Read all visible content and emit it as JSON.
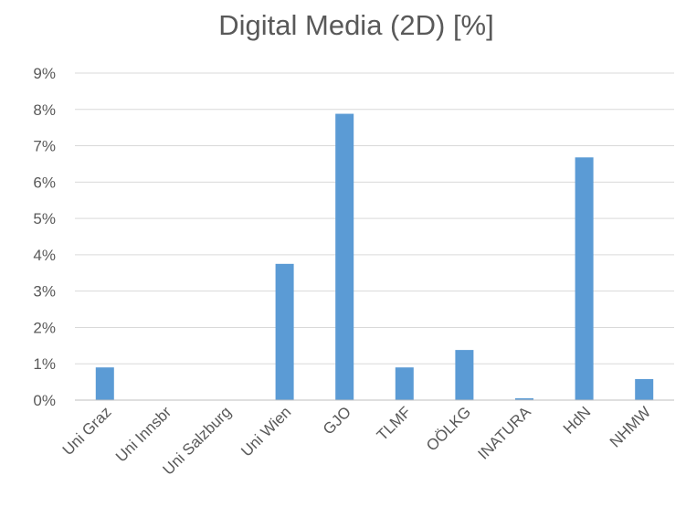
{
  "chart_data": {
    "type": "bar",
    "title": "Digital Media (2D) [%]",
    "xlabel": "",
    "ylabel": "",
    "categories": [
      "Uni Graz",
      "Uni Innsbr",
      "Uni Salzburg",
      "Uni Wien",
      "GJO",
      "TLMF",
      "OÖLKG",
      "INATURA",
      "HdN",
      "NHMW"
    ],
    "values": [
      0.9,
      0,
      0,
      3.75,
      7.88,
      0.9,
      1.38,
      0.05,
      6.68,
      0.58
    ],
    "ylim": [
      0,
      9
    ],
    "yticks": [
      "0%",
      "1%",
      "2%",
      "3%",
      "4%",
      "5%",
      "6%",
      "7%",
      "8%",
      "9%"
    ],
    "grid": true,
    "legend": "none",
    "bar_color": "#5b9bd5"
  }
}
